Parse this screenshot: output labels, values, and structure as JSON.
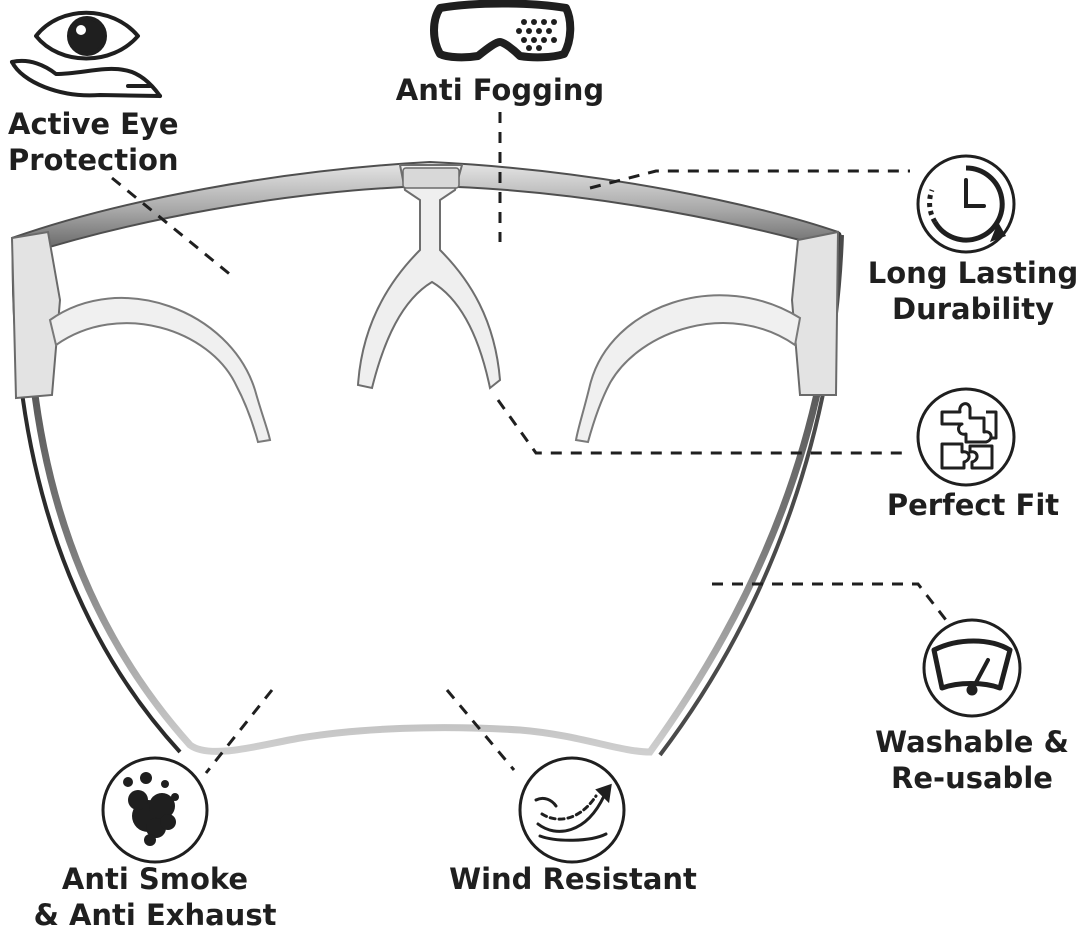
{
  "features": {
    "eye_protection": {
      "line1": "Active Eye",
      "line2": "Protection",
      "icon": "eye-hand-icon"
    },
    "anti_fogging": {
      "line1": "Anti Fogging",
      "icon": "goggles-icon"
    },
    "durability": {
      "line1": "Long Lasting",
      "line2": "Durability",
      "icon": "clock-icon"
    },
    "perfect_fit": {
      "line1": "Perfect Fit",
      "icon": "puzzle-icon"
    },
    "washable": {
      "line1": "Washable &",
      "line2": "Re-usable",
      "icon": "wiper-icon"
    },
    "anti_smoke": {
      "line1": "Anti Smoke",
      "line2": "& Anti Exhaust",
      "icon": "smoke-icon"
    },
    "wind_resistant": {
      "line1": "Wind Resistant",
      "icon": "wind-icon"
    }
  },
  "colors": {
    "text": "#1f1f1f",
    "frame": "#8a8a8a",
    "line": "#1f1f1f"
  }
}
